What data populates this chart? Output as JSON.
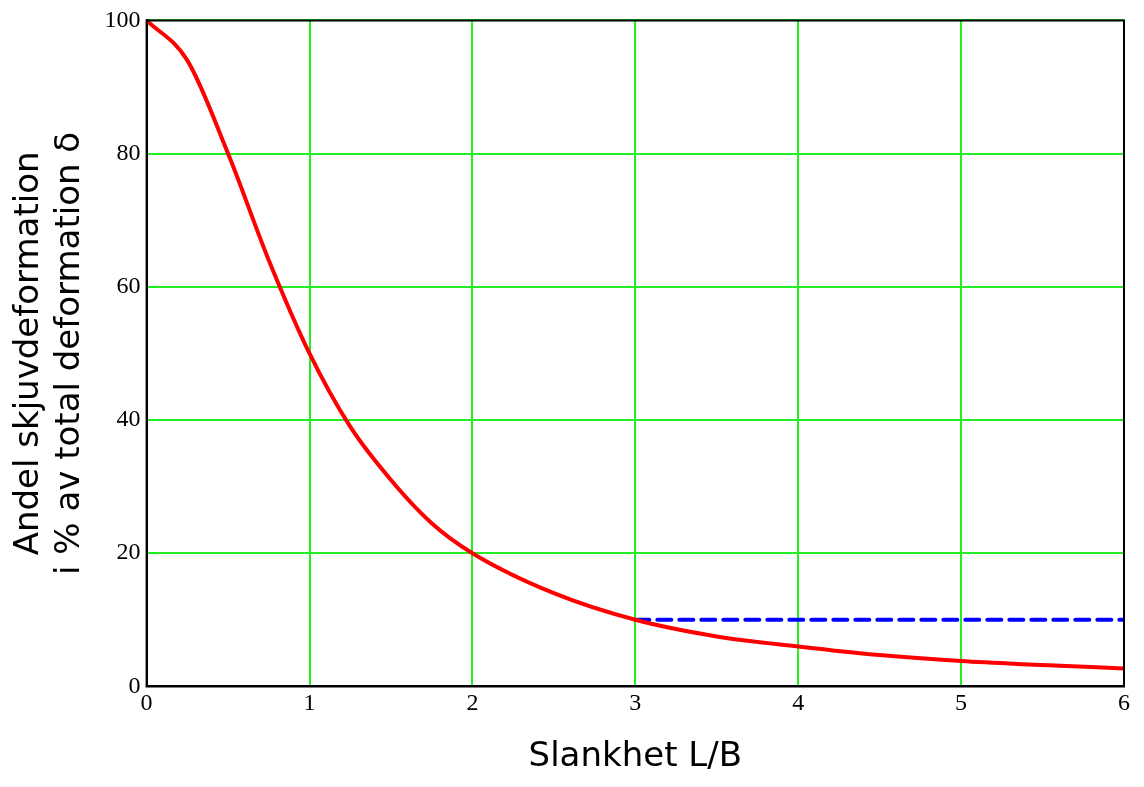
{
  "chart_data": {
    "type": "line",
    "xlabel": "Slankhet L/B",
    "ylabel": "Andel skjuvdeformation\ni % av total deformation δ",
    "series": [
      {
        "color": "#ff0000",
        "line_style": "solid",
        "x": [
          0,
          0.25,
          0.5,
          0.75,
          1,
          1.25,
          1.5,
          1.75,
          2,
          2.5,
          3,
          3.5,
          4,
          4.5,
          5,
          5.5,
          6
        ],
        "values": [
          100,
          94,
          80,
          64,
          50,
          39,
          31,
          24.5,
          20,
          14,
          10,
          7.5,
          6,
          4.7,
          3.8,
          3.2,
          2.7
        ]
      },
      {
        "color": "#0000ff",
        "line_style": "dashed",
        "x": [
          3,
          6
        ],
        "values": [
          10,
          10
        ]
      }
    ],
    "xlim": [
      0,
      6
    ],
    "xticks": [
      0,
      1,
      2,
      3,
      4,
      5,
      6
    ],
    "ylim": [
      0,
      100
    ],
    "yticks": [
      0,
      20,
      40,
      60,
      80,
      100
    ],
    "grid": true,
    "legend": false,
    "marker": "none"
  }
}
